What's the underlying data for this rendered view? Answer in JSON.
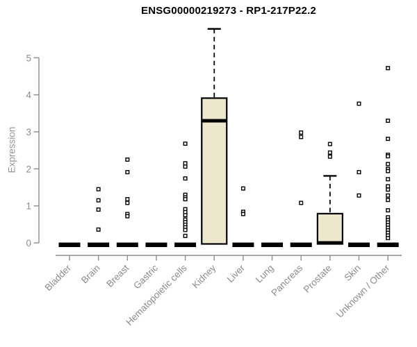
{
  "chart_data": {
    "type": "boxplot",
    "title": "ENSG00000219273 - RP1-217P22.2",
    "ylabel": "Expression",
    "xlabel": "",
    "ylim": [
      0,
      5
    ],
    "yticks": [
      0,
      1,
      2,
      3,
      4,
      5
    ],
    "grid": false,
    "legend": "none",
    "categories": [
      "Bladder",
      "Brain",
      "Breast",
      "Gastric",
      "Hematopoietic cells",
      "Kidney",
      "Liver",
      "Lung",
      "Pancreas",
      "Prostate",
      "Skin",
      "Unknown / Other"
    ],
    "series": [
      {
        "category": "Bladder",
        "median": 0,
        "q1": 0,
        "q3": 0,
        "whisker_low": 0,
        "whisker_high": 0,
        "outliers": []
      },
      {
        "category": "Brain",
        "median": 0,
        "q1": 0,
        "q3": 0,
        "whisker_low": 0,
        "whisker_high": 0,
        "outliers": [
          1.45,
          1.15,
          0.9,
          0.36
        ]
      },
      {
        "category": "Breast",
        "median": 0,
        "q1": 0,
        "q3": 0,
        "whisker_low": 0,
        "whisker_high": 0,
        "outliers": [
          2.25,
          1.91,
          1.18,
          1.08,
          0.78,
          0.72
        ]
      },
      {
        "category": "Gastric",
        "median": 0,
        "q1": 0,
        "q3": 0,
        "whisker_low": 0,
        "whisker_high": 0,
        "outliers": []
      },
      {
        "category": "Hematopoietic cells",
        "median": 0,
        "q1": 0,
        "q3": 0,
        "whisker_low": 0,
        "whisker_high": 0,
        "outliers": [
          2.68,
          2.15,
          2.06,
          1.74,
          1.3,
          1.23,
          1.18,
          0.91,
          0.83,
          0.75,
          0.63,
          0.56,
          0.49,
          0.42,
          0.35,
          0.19
        ]
      },
      {
        "category": "Kidney",
        "median": 3.3,
        "q1": 0,
        "q3": 3.91,
        "whisker_low": 0,
        "whisker_high": 5.78,
        "outliers": []
      },
      {
        "category": "Liver",
        "median": 0,
        "q1": 0,
        "q3": 0,
        "whisker_low": 0,
        "whisker_high": 0,
        "outliers": [
          1.47,
          0.84,
          0.78
        ]
      },
      {
        "category": "Lung",
        "median": 0,
        "q1": 0,
        "q3": 0,
        "whisker_low": 0,
        "whisker_high": 0,
        "outliers": []
      },
      {
        "category": "Pancreas",
        "median": 0,
        "q1": 0,
        "q3": 0,
        "whisker_low": 0,
        "whisker_high": 0,
        "outliers": [
          2.98,
          2.86,
          1.08
        ]
      },
      {
        "category": "Prostate",
        "median": 0,
        "q1": 0,
        "q3": 0.79,
        "whisker_low": 0,
        "whisker_high": 1.81,
        "outliers": [
          2.67,
          2.44,
          2.33
        ]
      },
      {
        "category": "Skin",
        "median": 0,
        "q1": 0,
        "q3": 0,
        "whisker_low": 0,
        "whisker_high": 0,
        "outliers": [
          3.76,
          1.91,
          1.28
        ]
      },
      {
        "category": "Unknown / Other",
        "median": 0,
        "q1": 0,
        "q3": 0,
        "whisker_low": 0,
        "whisker_high": 0,
        "outliers": [
          4.72,
          3.3,
          2.81,
          2.38,
          2.34,
          2.13,
          2.0,
          1.94,
          1.72,
          1.53,
          1.44,
          1.28,
          1.16,
          0.88,
          0.69,
          0.62,
          0.55,
          0.48,
          0.41,
          0.34,
          0.27,
          0.2,
          0.13
        ]
      }
    ],
    "colors": {
      "box_fill": "#ece7cd",
      "box_border": "#000000",
      "median": "#000000",
      "whisker": "#000000",
      "outlier": "#000000",
      "outlier_fill": "#ffffff",
      "axis": "#8c8c8c",
      "tick_label": "#8c8c8c",
      "title": "#000000",
      "background": "#ffffff"
    }
  }
}
